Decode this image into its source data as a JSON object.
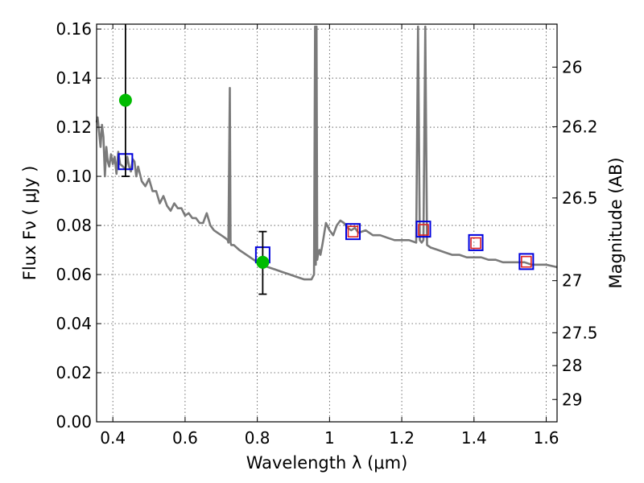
{
  "chart_data": {
    "type": "line",
    "xlabel": "Wavelength  λ (μm)",
    "ylabel": "Flux  Fν  ( μJy )",
    "ylabel_right": "Magnitude (AB)",
    "xlim": [
      0.355,
      1.63
    ],
    "ylim": [
      0.0,
      0.162
    ],
    "grid": true,
    "x_ticks": [
      0.4,
      0.6,
      0.8,
      1.0,
      1.2,
      1.4,
      1.6
    ],
    "x_tick_labels": [
      "0.4",
      "0.6",
      "0.8",
      "1",
      "1.2",
      "1.4",
      "1.6"
    ],
    "y_ticks": [
      0.0,
      0.02,
      0.04,
      0.06,
      0.08,
      0.1,
      0.12,
      0.14,
      0.16
    ],
    "y_tick_labels": [
      "0.00",
      "0.02",
      "0.04",
      "0.06",
      "0.08",
      "0.10",
      "0.12",
      "0.14",
      "0.16"
    ],
    "right_ticks": [
      {
        "mag": "26",
        "flux": 0.1445
      },
      {
        "mag": "26.2",
        "flux": 0.1202
      },
      {
        "mag": "26.5",
        "flux": 0.0912
      },
      {
        "mag": "27",
        "flux": 0.0575
      },
      {
        "mag": "27.5",
        "flux": 0.0363
      },
      {
        "mag": "28",
        "flux": 0.0229
      },
      {
        "mag": "29",
        "flux": 0.0091
      }
    ],
    "series": [
      {
        "kind": "spectrum",
        "color": "#7a7a7a",
        "x": [
          0.355,
          0.358,
          0.362,
          0.366,
          0.37,
          0.374,
          0.378,
          0.382,
          0.386,
          0.39,
          0.395,
          0.4,
          0.405,
          0.41,
          0.415,
          0.42,
          0.428,
          0.435,
          0.44,
          0.445,
          0.45,
          0.455,
          0.46,
          0.465,
          0.47,
          0.48,
          0.49,
          0.5,
          0.51,
          0.52,
          0.53,
          0.54,
          0.55,
          0.56,
          0.57,
          0.58,
          0.59,
          0.6,
          0.61,
          0.62,
          0.63,
          0.64,
          0.65,
          0.66,
          0.67,
          0.68,
          0.69,
          0.7,
          0.71,
          0.718,
          0.72,
          0.724,
          0.726,
          0.728,
          0.735,
          0.75,
          0.77,
          0.79,
          0.81,
          0.83,
          0.85,
          0.87,
          0.89,
          0.91,
          0.93,
          0.95,
          0.957,
          0.96,
          0.962,
          0.964,
          0.966,
          0.968,
          0.972,
          0.975,
          0.98,
          0.99,
          1.0,
          1.01,
          1.02,
          1.03,
          1.04,
          1.05,
          1.06,
          1.07,
          1.08,
          1.1,
          1.12,
          1.14,
          1.16,
          1.18,
          1.2,
          1.22,
          1.24,
          1.245,
          1.25,
          1.255,
          1.26,
          1.265,
          1.27,
          1.28,
          1.3,
          1.32,
          1.34,
          1.36,
          1.38,
          1.4,
          1.42,
          1.44,
          1.46,
          1.48,
          1.5,
          1.52,
          1.54,
          1.56,
          1.58,
          1.6,
          1.63
        ],
        "y": [
          0.122,
          0.124,
          0.118,
          0.112,
          0.121,
          0.116,
          0.1,
          0.112,
          0.106,
          0.104,
          0.109,
          0.105,
          0.108,
          0.101,
          0.11,
          0.105,
          0.104,
          0.103,
          0.108,
          0.104,
          0.102,
          0.107,
          0.106,
          0.1,
          0.104,
          0.098,
          0.096,
          0.099,
          0.094,
          0.094,
          0.089,
          0.092,
          0.088,
          0.086,
          0.089,
          0.087,
          0.087,
          0.084,
          0.085,
          0.083,
          0.083,
          0.081,
          0.081,
          0.085,
          0.08,
          0.078,
          0.077,
          0.076,
          0.075,
          0.074,
          0.073,
          0.136,
          0.073,
          0.072,
          0.072,
          0.07,
          0.068,
          0.066,
          0.064,
          0.063,
          0.062,
          0.061,
          0.06,
          0.059,
          0.058,
          0.058,
          0.06,
          0.161,
          0.064,
          0.161,
          0.066,
          0.068,
          0.07,
          0.068,
          0.072,
          0.081,
          0.078,
          0.076,
          0.08,
          0.082,
          0.081,
          0.079,
          0.078,
          0.079,
          0.077,
          0.078,
          0.076,
          0.076,
          0.075,
          0.074,
          0.074,
          0.074,
          0.073,
          0.161,
          0.074,
          0.073,
          0.074,
          0.161,
          0.072,
          0.071,
          0.07,
          0.069,
          0.068,
          0.068,
          0.067,
          0.067,
          0.067,
          0.066,
          0.066,
          0.065,
          0.065,
          0.065,
          0.065,
          0.064,
          0.064,
          0.064,
          0.063
        ]
      },
      {
        "kind": "blue-squares",
        "color": "#0000dd",
        "x": [
          0.435,
          0.815,
          1.065,
          1.26,
          1.405,
          1.545
        ],
        "y": [
          0.106,
          0.068,
          0.0775,
          0.0785,
          0.073,
          0.0653
        ]
      },
      {
        "kind": "red-squares",
        "color": "#dd2222",
        "x": [
          1.065,
          1.26,
          1.405,
          1.545
        ],
        "y": [
          0.0775,
          0.0782,
          0.0728,
          0.0652
        ]
      },
      {
        "kind": "green-points",
        "color": "#00bb00",
        "x": [
          0.435,
          0.815
        ],
        "y": [
          0.131,
          0.065
        ],
        "yerr_low": [
          0.1,
          0.052
        ],
        "yerr_high": [
          0.165,
          0.0775
        ]
      }
    ]
  }
}
